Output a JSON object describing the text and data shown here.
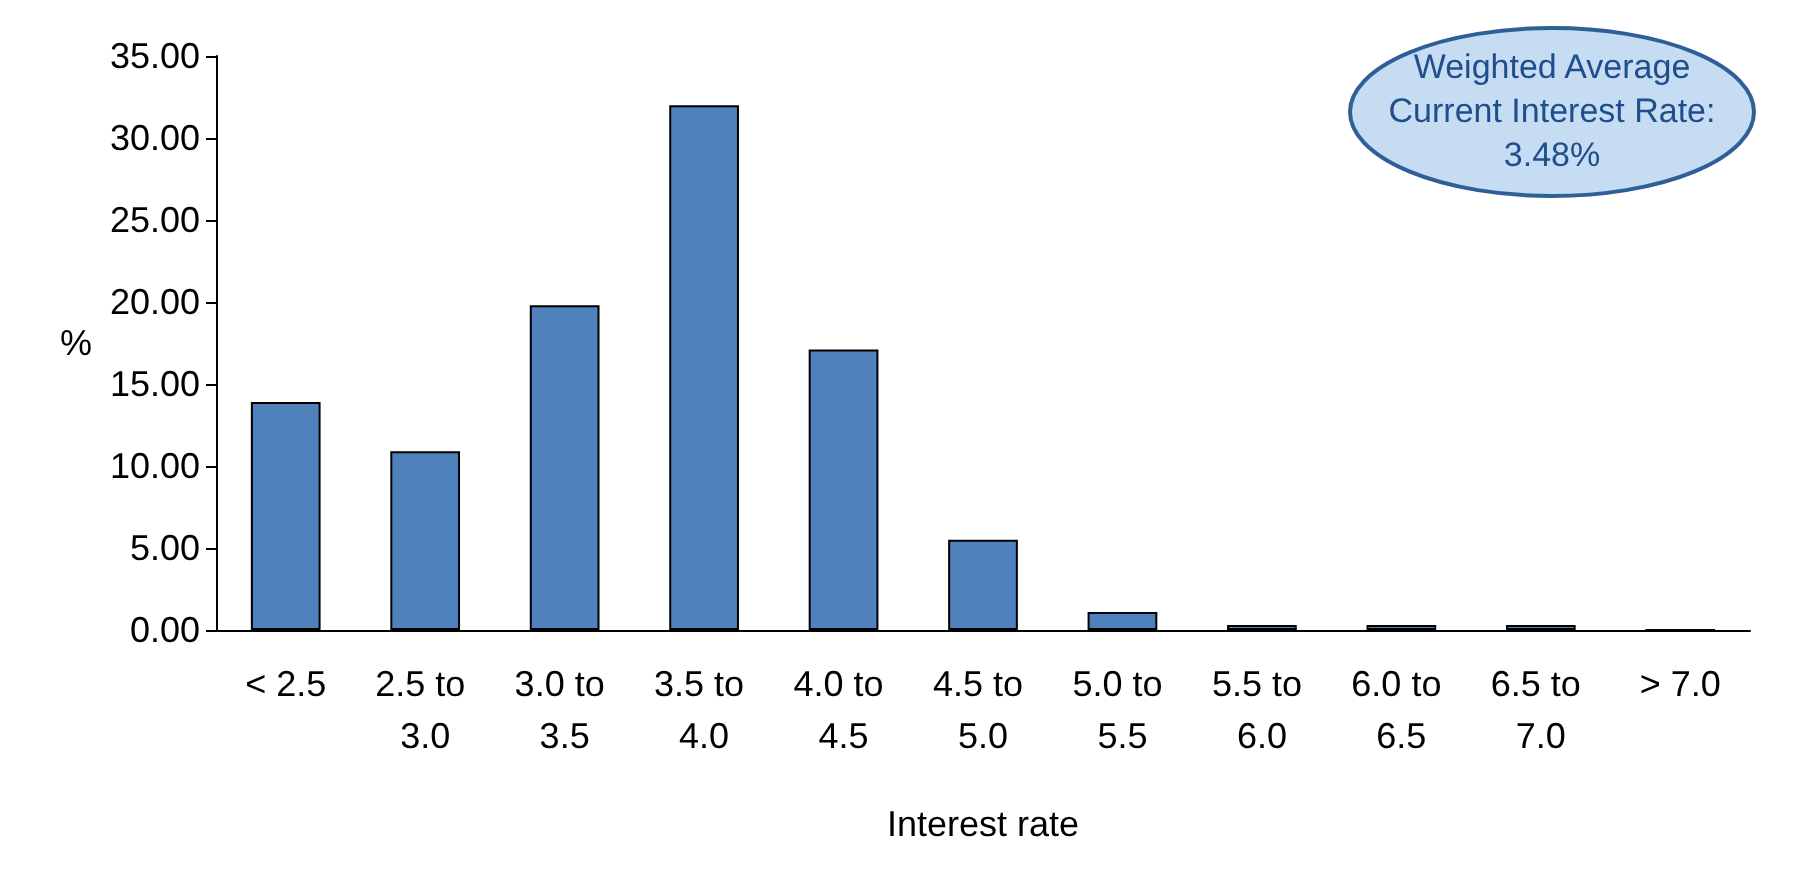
{
  "chart_data": {
    "type": "bar",
    "xlabel": "Interest rate",
    "ylabel": "%",
    "categories": [
      "< 2.5",
      "2.5 to 3.0",
      "3.0 to 3.5",
      "3.5 to 4.0",
      "4.0 to 4.5",
      "4.5 to 5.0",
      "5.0 to 5.5",
      "5.5 to 6.0",
      "6.0 to 6.5",
      "6.5 to 7.0",
      "> 7.0"
    ],
    "values": [
      13.9,
      10.9,
      19.8,
      32.0,
      17.1,
      5.5,
      1.1,
      0.3,
      0.3,
      0.3,
      0
    ],
    "color": "#4f81bd",
    "ylim": [
      0,
      35
    ],
    "yticks": [
      {
        "value": 0,
        "label": "0.00"
      },
      {
        "value": 5,
        "label": "5.00"
      },
      {
        "value": 10,
        "label": "10.00"
      },
      {
        "value": 15,
        "label": "15.00"
      },
      {
        "value": 20,
        "label": "20.00"
      },
      {
        "value": 25,
        "label": "25.00"
      },
      {
        "value": 30,
        "label": "30.00"
      },
      {
        "value": 35,
        "label": "35.00"
      }
    ],
    "annotations": [
      "Weighted Average Current Interest Rate: 3.48%"
    ],
    "grid": false
  }
}
